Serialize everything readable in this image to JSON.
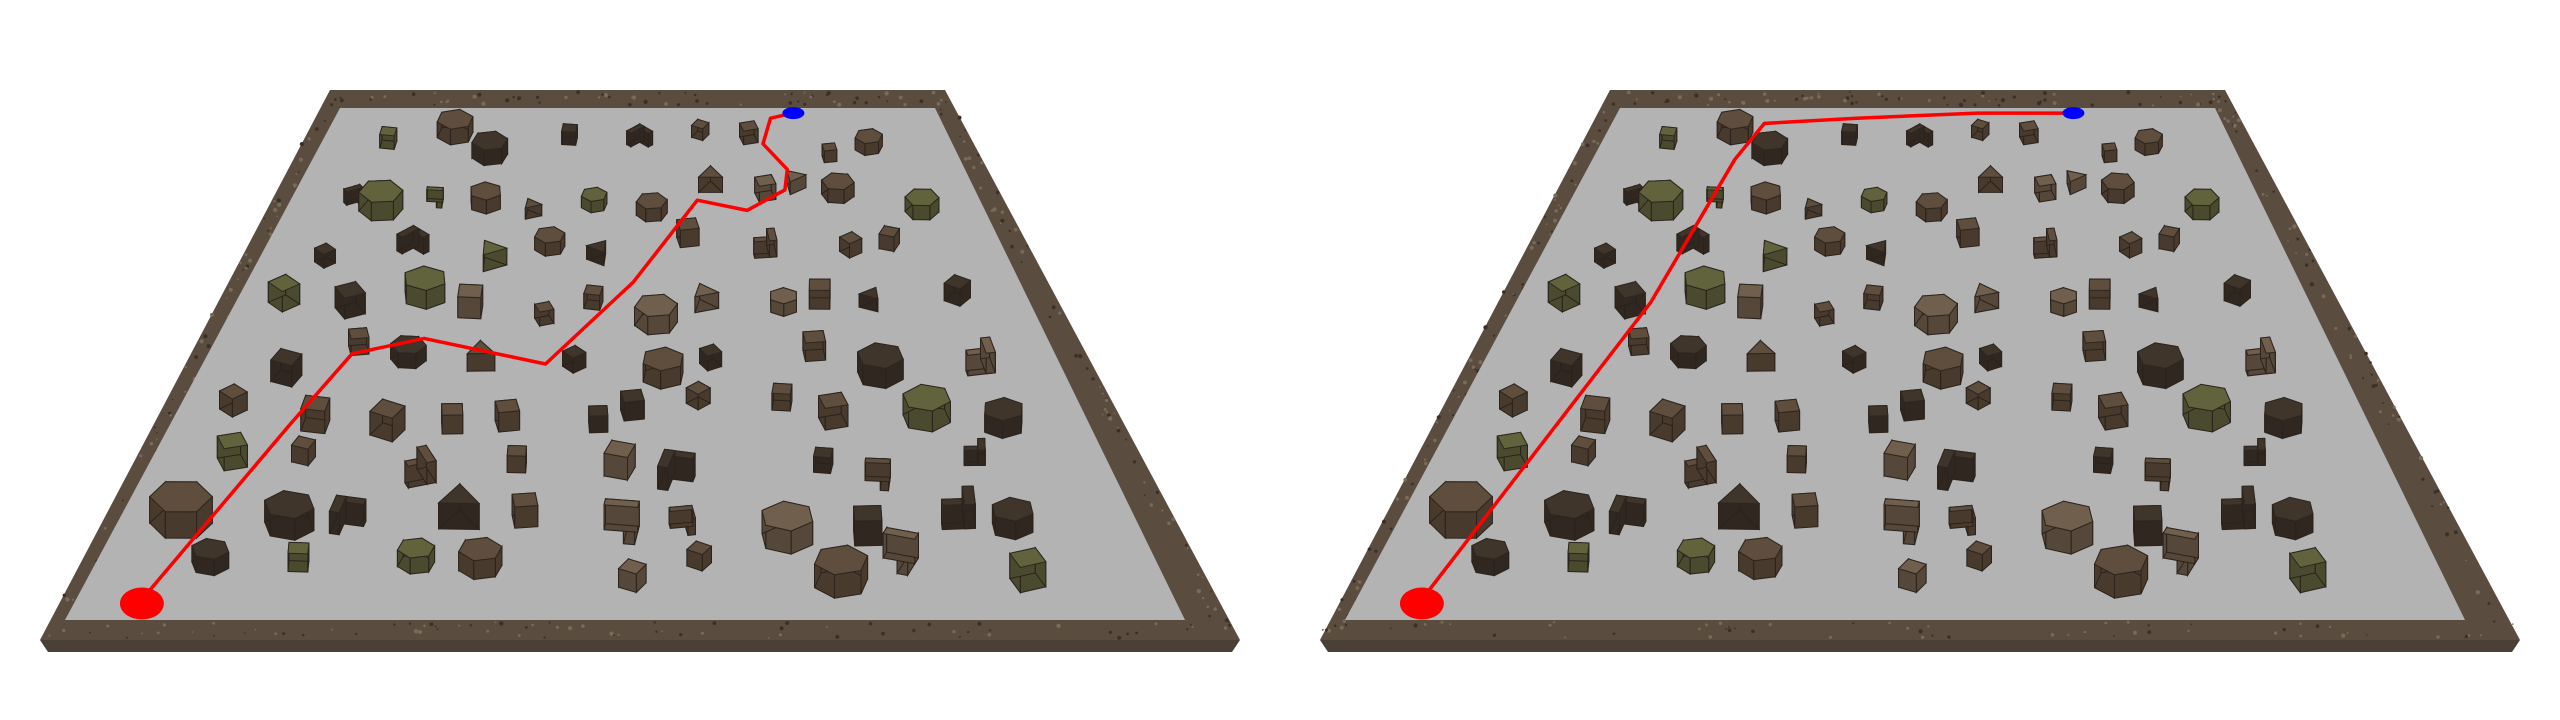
{
  "panels": [
    {
      "name": "left-scene",
      "start_color": "#ff0000",
      "goal_color": "#0000ff",
      "path_color": "#ff0000",
      "path": [
        [
          0.06,
          0.04
        ],
        [
          0.13,
          0.38
        ],
        [
          0.17,
          0.52
        ],
        [
          0.25,
          0.55
        ],
        [
          0.4,
          0.5
        ],
        [
          0.5,
          0.66
        ],
        [
          0.59,
          0.82
        ],
        [
          0.66,
          0.8
        ],
        [
          0.72,
          0.84
        ],
        [
          0.73,
          0.88
        ],
        [
          0.7,
          0.93
        ],
        [
          0.72,
          0.98
        ],
        [
          0.76,
          0.99
        ]
      ]
    },
    {
      "name": "right-scene",
      "start_color": "#ff0000",
      "goal_color": "#0000ff",
      "path_color": "#ff0000",
      "path": [
        [
          0.06,
          0.04
        ],
        [
          0.17,
          0.62
        ],
        [
          0.22,
          0.9
        ],
        [
          0.25,
          0.97
        ],
        [
          0.4,
          0.98
        ],
        [
          0.6,
          0.99
        ],
        [
          0.76,
          0.99
        ]
      ]
    }
  ],
  "obstacle_palette": {
    "dark": "#3c3228",
    "mid": "#5a4a3a",
    "olive": "#5c5e3a",
    "light": "#6a5a48"
  }
}
